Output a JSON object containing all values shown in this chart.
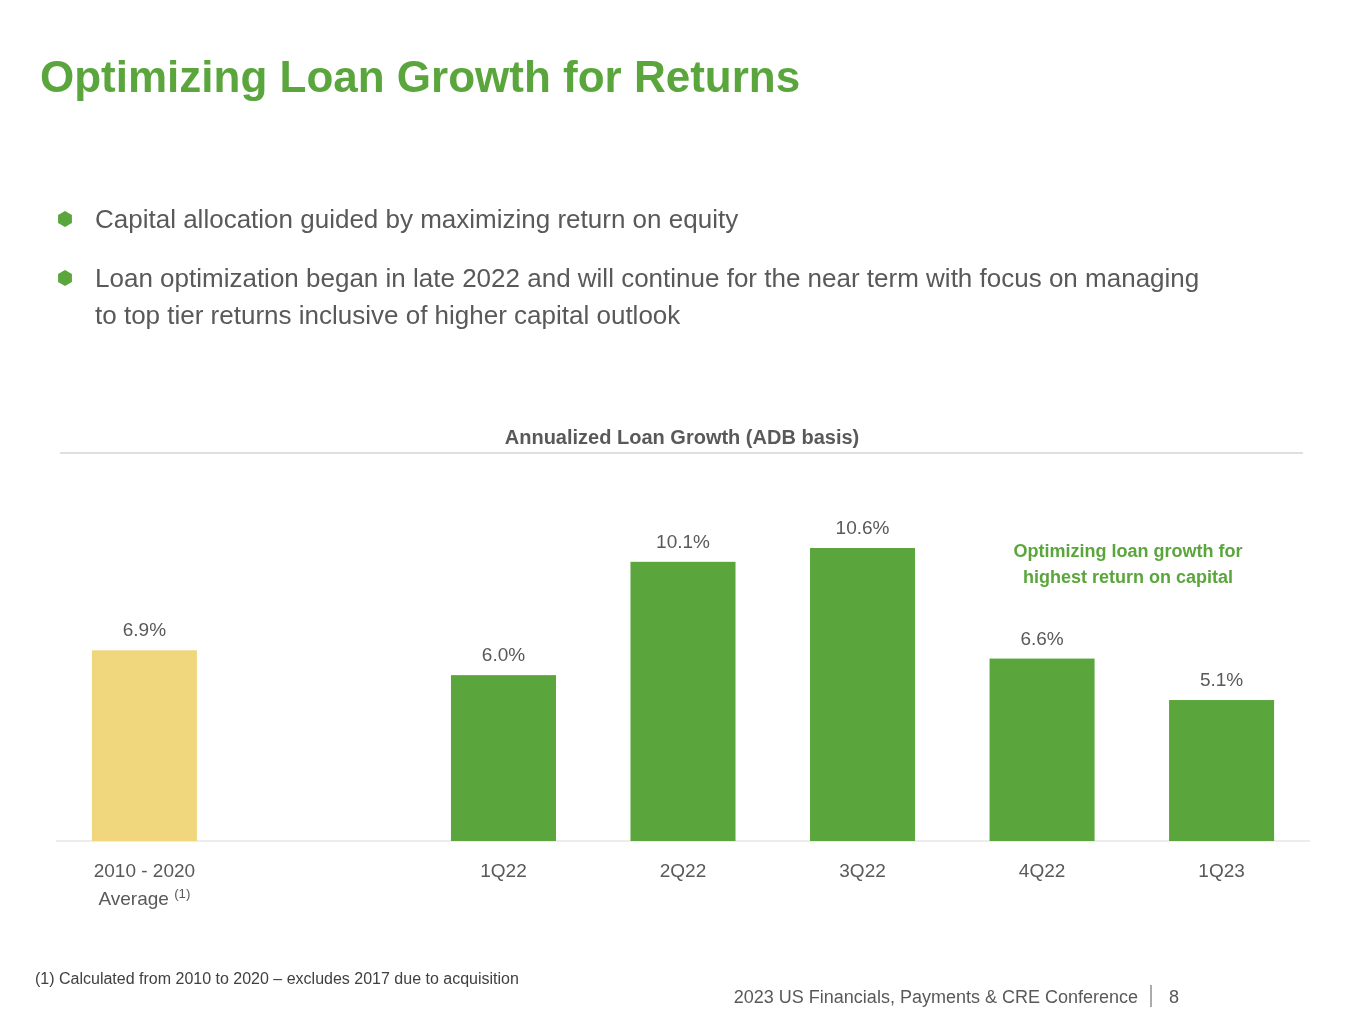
{
  "chart_data": {
    "type": "bar",
    "title": "Optimizing Loan Growth for Returns",
    "subtitle": "Annualized Loan Growth (ADB basis)",
    "categories": [
      "2010 - 2020\nAverage $^{(1)}$",
      null,
      "1Q22",
      "2Q22",
      "3Q22",
      "4Q22",
      "1Q23"
    ],
    "values": [
      6.9,
      null,
      6.0,
      10.1,
      10.6,
      6.6,
      5.1
    ],
    "value_labels": [
      "6.9%",
      null,
      "6.0%",
      "10.1%",
      "10.6%",
      "6.6%",
      "5.1%"
    ],
    "colors": [
      "#f0d77e",
      null,
      "#5aa63c",
      "#5aa63c",
      "#5aa63c",
      "#5aa63c",
      "#5aa63c"
    ],
    "annotations": [
      "Capital allocation guided by maximizing return on equity",
      "Loan optimization began in late 2022 and will continue for the near term with focus on managing to top tier returns inclusive of higher capital outlook",
      "Optimizing loan growth for highest return on capital",
      "(1) Calculated from 2010 to 2020 – excludes 2017 due to acquisition",
      "2023 US Financials, Payments & CRE Conference",
      "8"
    ]
  }
}
